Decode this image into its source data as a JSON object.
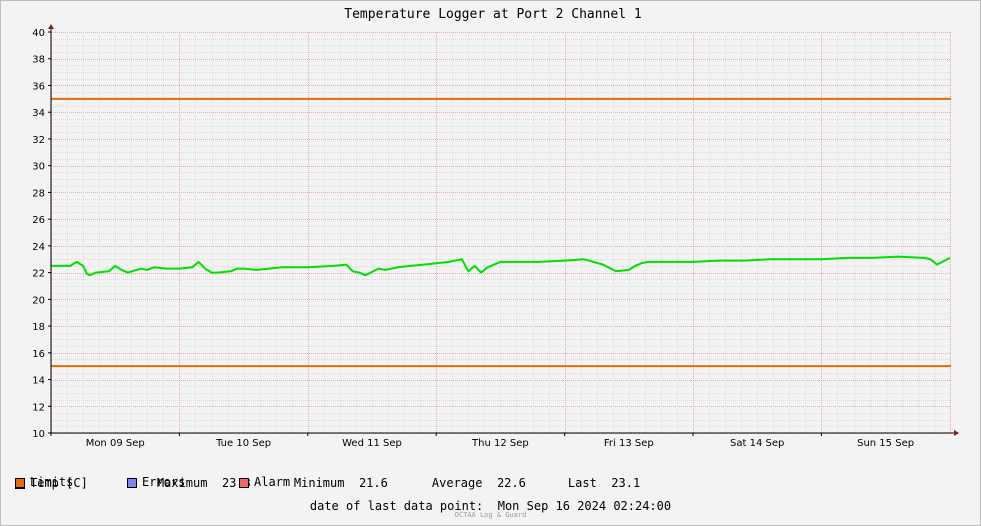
{
  "chart_data": {
    "type": "line",
    "title": "Temperature Logger at Port 2 Channel 1",
    "xlabel": "",
    "ylabel": "",
    "ylim": [
      10,
      40
    ],
    "y_ticks": [
      10,
      12,
      14,
      16,
      18,
      20,
      22,
      24,
      26,
      28,
      30,
      32,
      34,
      36,
      38,
      40
    ],
    "x_range_days": [
      0,
      7.1
    ],
    "x_tick_labels": [
      "Mon 09 Sep",
      "Tue 10 Sep",
      "Wed 11 Sep",
      "Thu 12 Sep",
      "Fri 13 Sep",
      "Sat 14 Sep",
      "Sun 15 Sep"
    ],
    "grid": true,
    "series": [
      {
        "name": "Temp [C]",
        "color": "#00e000",
        "x": [
          0.0,
          0.15,
          0.2,
          0.25,
          0.28,
          0.3,
          0.35,
          0.45,
          0.5,
          0.55,
          0.6,
          0.7,
          0.75,
          0.8,
          0.9,
          1.0,
          1.1,
          1.15,
          1.2,
          1.25,
          1.3,
          1.4,
          1.45,
          1.5,
          1.6,
          1.7,
          1.8,
          2.0,
          2.2,
          2.3,
          2.35,
          2.4,
          2.45,
          2.55,
          2.6,
          2.65,
          2.7,
          2.8,
          2.9,
          3.0,
          3.1,
          3.2,
          3.25,
          3.3,
          3.35,
          3.4,
          3.5,
          3.6,
          3.8,
          4.0,
          4.15,
          4.3,
          4.4,
          4.5,
          4.55,
          4.6,
          4.65,
          4.8,
          5.0,
          5.2,
          5.4,
          5.6,
          5.8,
          6.0,
          6.2,
          6.4,
          6.6,
          6.8,
          6.85,
          6.9,
          7.0
        ],
        "values": [
          22.5,
          22.5,
          22.8,
          22.5,
          21.9,
          21.8,
          22.0,
          22.1,
          22.5,
          22.2,
          22.0,
          22.3,
          22.2,
          22.4,
          22.3,
          22.3,
          22.4,
          22.8,
          22.3,
          22.0,
          22.0,
          22.1,
          22.3,
          22.3,
          22.2,
          22.3,
          22.4,
          22.4,
          22.5,
          22.6,
          22.1,
          22.0,
          21.8,
          22.3,
          22.2,
          22.3,
          22.4,
          22.5,
          22.6,
          22.7,
          22.8,
          23.0,
          22.1,
          22.5,
          22.0,
          22.4,
          22.8,
          22.8,
          22.8,
          22.9,
          23.0,
          22.6,
          22.1,
          22.2,
          22.5,
          22.7,
          22.8,
          22.8,
          22.8,
          22.9,
          22.9,
          23.0,
          23.0,
          23.0,
          23.1,
          23.1,
          23.2,
          23.1,
          23.0,
          22.6,
          23.1
        ]
      },
      {
        "name": "Limits",
        "color": "#e36c0a",
        "values": [
          35,
          15
        ]
      }
    ],
    "stats": {
      "maximum_label": "Maximum",
      "maximum": "23.3",
      "minimum_label": "Minimum",
      "minimum": "21.6",
      "average_label": "Average",
      "average": "22.6",
      "last_label": "Last",
      "last": "23.1"
    },
    "legend": [
      {
        "label": "Temp [C]",
        "color": "#00e000"
      },
      {
        "label": "Limits",
        "color": "#e36c0a"
      },
      {
        "label": "Errors",
        "color": "#7b86ee"
      },
      {
        "label": "Alarm",
        "color": "#ee6a6a"
      }
    ]
  },
  "footer": {
    "last_data_label": "date of last data point:",
    "last_data_value": "Mon Sep 16 2024 02:24:00",
    "credit": "OCTAA Log & Guard"
  }
}
